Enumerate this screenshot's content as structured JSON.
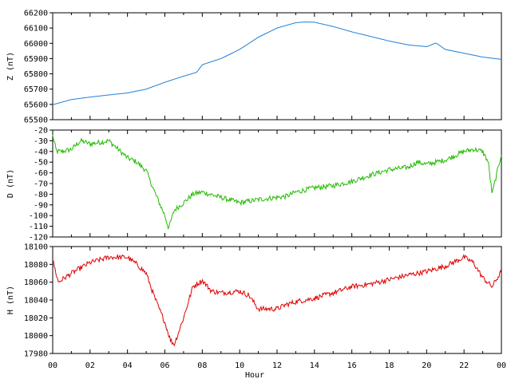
{
  "chart_data": {
    "type": "line",
    "xlabel": "Hour",
    "x_ticks": [
      "00",
      "02",
      "04",
      "06",
      "08",
      "10",
      "12",
      "14",
      "16",
      "18",
      "20",
      "22",
      "00"
    ],
    "xlim_hours": [
      0,
      24
    ],
    "grid": false,
    "panels": [
      {
        "ylabel": "Z (nT)",
        "color": "#1f7fd6",
        "ylim": [
          65500,
          66200
        ],
        "y_ticks": [
          66200,
          66100,
          66000,
          65900,
          65800,
          65700,
          65600,
          65500
        ],
        "hours": [
          0,
          1,
          2,
          3,
          4,
          5,
          6,
          7,
          7.7,
          8.0,
          9,
          10,
          11,
          12,
          13,
          13.5,
          14,
          15,
          16,
          17,
          18,
          19,
          20,
          20.5,
          21,
          22,
          23,
          24
        ],
        "values": [
          65598,
          65632,
          65648,
          65662,
          65675,
          65700,
          65745,
          65785,
          65810,
          65860,
          65900,
          65960,
          66040,
          66100,
          66135,
          66140,
          66138,
          66110,
          66075,
          66045,
          66015,
          65990,
          65978,
          66002,
          65960,
          65935,
          65910,
          65895
        ]
      },
      {
        "ylabel": "D (nT)",
        "color": "#22bb00",
        "ylim": [
          -120,
          -20
        ],
        "y_ticks": [
          -20,
          -30,
          -40,
          -50,
          -60,
          -70,
          -80,
          -90,
          -100,
          -110,
          -120
        ],
        "hours": [
          0,
          0.2,
          0.5,
          1,
          1.5,
          2,
          3,
          3.5,
          4,
          4.5,
          5,
          5.5,
          6,
          6.2,
          6.5,
          7,
          7.5,
          8,
          9,
          10,
          11,
          12,
          12.5,
          13,
          14,
          15,
          16,
          17,
          18,
          19,
          19.5,
          20,
          21,
          22,
          22.5,
          23,
          23.3,
          23.5,
          24
        ],
        "values": [
          -25,
          -40,
          -40,
          -38,
          -30,
          -33,
          -30,
          -38,
          -46,
          -50,
          -58,
          -80,
          -100,
          -112,
          -95,
          -88,
          -80,
          -78,
          -83,
          -88,
          -85,
          -83,
          -82,
          -78,
          -74,
          -72,
          -68,
          -62,
          -57,
          -55,
          -50,
          -52,
          -48,
          -40,
          -38,
          -40,
          -50,
          -80,
          -42
        ]
      },
      {
        "ylabel": "H (nT)",
        "color": "#dd0000",
        "ylim": [
          17980,
          18100
        ],
        "y_ticks": [
          18100,
          18080,
          18060,
          18040,
          18020,
          18000,
          17980
        ],
        "hours": [
          0,
          0.3,
          1,
          2,
          3,
          4,
          4.5,
          5,
          5.5,
          6,
          6.3,
          6.5,
          7,
          7.5,
          8,
          8.5,
          9,
          10,
          10.5,
          11,
          12,
          12.5,
          13,
          14,
          15,
          16,
          17,
          18,
          19,
          20,
          21,
          22,
          22.5,
          23,
          23.5,
          24
        ],
        "values": [
          18085,
          18060,
          18070,
          18082,
          18088,
          18088,
          18080,
          18070,
          18040,
          18015,
          17995,
          17990,
          18020,
          18055,
          18062,
          18050,
          18048,
          18050,
          18045,
          18030,
          18030,
          18035,
          18038,
          18042,
          18048,
          18055,
          18058,
          18063,
          18068,
          18072,
          18078,
          18088,
          18082,
          18065,
          18055,
          18072
        ]
      }
    ]
  }
}
